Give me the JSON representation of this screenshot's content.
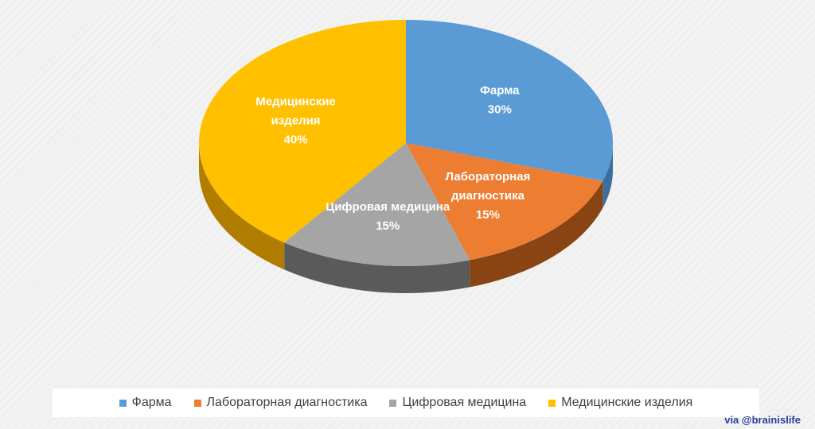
{
  "chart_data": {
    "type": "pie",
    "title": "",
    "slices": [
      {
        "name": "Фарма",
        "value": 30,
        "label_lines": [
          "Фарма",
          "30%"
        ],
        "color": "#5b9bd5",
        "side_color": "#3d6f9e"
      },
      {
        "name": "Лабораторная диагностика",
        "value": 15,
        "label_lines": [
          "Лабораторная",
          "диагностика",
          "15%"
        ],
        "color": "#ed7d31",
        "side_color": "#8a4312"
      },
      {
        "name": "Цифровая медицина",
        "value": 15,
        "label_lines": [
          "Цифровая медицина",
          "15%"
        ],
        "color": "#a5a5a5",
        "side_color": "#5a5a5a"
      },
      {
        "name": "Медицинские изделия",
        "value": 40,
        "label_lines": [
          "Медицинские",
          "изделия",
          "40%"
        ],
        "color": "#ffc000",
        "side_color": "#b07d00"
      }
    ],
    "legend_position": "bottom"
  },
  "legend": {
    "items": [
      {
        "label": "Фарма",
        "color": "#5b9bd5"
      },
      {
        "label": "Лабораторная диагностика",
        "color": "#ed7d31"
      },
      {
        "label": "Цифровая медицина",
        "color": "#a5a5a5"
      },
      {
        "label": "Медицинские изделия",
        "color": "#ffc000"
      }
    ]
  },
  "credit": "via @brainislife"
}
